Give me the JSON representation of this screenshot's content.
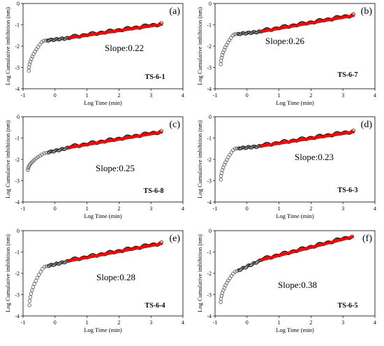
{
  "chart_data": [
    {
      "type": "scatter",
      "panel_label": "(a)",
      "sample": "TS-6-1",
      "slope_label": "Slope:0.22",
      "xlabel": "Log Time (min)",
      "ylabel": "Log Cumulative imbibition (nm)",
      "xlim": [
        -1,
        4
      ],
      "ylim": [
        -4,
        0
      ],
      "xticks": [
        "-1",
        "0",
        "1",
        "2",
        "3",
        "4"
      ],
      "yticks": [
        "0",
        "-1",
        "-2",
        "-3",
        "-4"
      ],
      "curve": {
        "onset": -0.82,
        "y0": -3.15,
        "knee_x": -0.38,
        "knee_y": -1.75,
        "fit_start": 0.45,
        "y_at_fit_start": -1.62,
        "slope": 0.22,
        "end_x": 3.35
      },
      "series_colors": {
        "open_markers": "#555555",
        "dense_markers": "#111111",
        "fit": "#ff0000"
      }
    },
    {
      "type": "scatter",
      "panel_label": "(b)",
      "sample": "TS-6-7",
      "slope_label": "Slope:0.26",
      "xlabel": "Log Time (min)",
      "ylabel": "Log Cumulative imbibition (nm)",
      "xlim": [
        -1,
        4
      ],
      "ylim": [
        -4,
        0
      ],
      "xticks": [
        "-1",
        "0",
        "1",
        "2",
        "3",
        "4"
      ],
      "yticks": [
        "0",
        "-1",
        "-2",
        "-3",
        "-4"
      ],
      "curve": {
        "onset": -0.82,
        "y0": -2.85,
        "knee_x": -0.42,
        "knee_y": -1.45,
        "fit_start": 0.45,
        "y_at_fit_start": -1.32,
        "slope": 0.26,
        "end_x": 3.35
      },
      "series_colors": {
        "open_markers": "#555555",
        "dense_markers": "#111111",
        "fit": "#ff0000"
      }
    },
    {
      "type": "scatter",
      "panel_label": "(c)",
      "sample": "TS-6-8",
      "slope_label": "Slope:0.25",
      "xlabel": "Log Time (min)",
      "ylabel": "Log Cumulative imbibition (nm)",
      "xlim": [
        -1,
        4
      ],
      "ylim": [
        -4,
        0
      ],
      "xticks": [
        "-1",
        "0",
        "1",
        "2",
        "3",
        "4"
      ],
      "yticks": [
        "0",
        "-1",
        "-2",
        "-3",
        "-4"
      ],
      "curve": {
        "onset": -0.85,
        "y0": -2.5,
        "knee_x": -0.35,
        "knee_y": -1.72,
        "fit_start": 0.45,
        "y_at_fit_start": -1.45,
        "slope": 0.25,
        "end_x": 3.35
      },
      "series_colors": {
        "open_markers": "#555555",
        "dense_markers": "#111111",
        "fit": "#ff0000"
      }
    },
    {
      "type": "scatter",
      "panel_label": "(d)",
      "sample": "TS-6-3",
      "slope_label": "Slope:0.23",
      "xlabel": "Log Time (min)",
      "ylabel": "Log Cumulative imbibition (nm)",
      "xlim": [
        -1,
        4
      ],
      "ylim": [
        -4,
        0
      ],
      "xticks": [
        "-1",
        "0",
        "1",
        "2",
        "3",
        "4"
      ],
      "yticks": [
        "0",
        "-1",
        "-2",
        "-3",
        "-4"
      ],
      "curve": {
        "onset": -0.82,
        "y0": -2.95,
        "knee_x": -0.4,
        "knee_y": -1.5,
        "fit_start": 0.45,
        "y_at_fit_start": -1.38,
        "slope": 0.23,
        "end_x": 3.35
      },
      "series_colors": {
        "open_markers": "#555555",
        "dense_markers": "#111111",
        "fit": "#ff0000"
      }
    },
    {
      "type": "scatter",
      "panel_label": "(e)",
      "sample": "TS-6-4",
      "slope_label": "Slope:0.28",
      "xlabel": "Log Time (min)",
      "ylabel": "Log Cumulative imbibition (nm)",
      "xlim": [
        -1,
        4
      ],
      "ylim": [
        -4,
        0
      ],
      "xticks": [
        "-1",
        "0",
        "1",
        "2",
        "3",
        "4"
      ],
      "yticks": [
        "0",
        "-1",
        "-2",
        "-3",
        "-4"
      ],
      "curve": {
        "onset": -0.8,
        "y0": -3.5,
        "knee_x": -0.35,
        "knee_y": -1.7,
        "fit_start": 0.45,
        "y_at_fit_start": -1.42,
        "slope": 0.28,
        "end_x": 3.35
      },
      "series_colors": {
        "open_markers": "#555555",
        "dense_markers": "#111111",
        "fit": "#ff0000"
      }
    },
    {
      "type": "scatter",
      "panel_label": "(f)",
      "sample": "TS-6-5",
      "slope_label": "Slope:0.38",
      "xlabel": "Log Time (min)",
      "ylabel": "Log Cumulative imbibition (nm)",
      "xlim": [
        -1,
        4
      ],
      "ylim": [
        -4,
        0
      ],
      "xticks": [
        "-1",
        "0",
        "1",
        "2",
        "3",
        "4"
      ],
      "yticks": [
        "0",
        "-1",
        "-2",
        "-3",
        "-4"
      ],
      "curve": {
        "onset": -0.82,
        "y0": -3.35,
        "knee_x": -0.4,
        "knee_y": -1.95,
        "fit_start": 0.45,
        "y_at_fit_start": -1.38,
        "slope": 0.38,
        "end_x": 3.3
      },
      "series_colors": {
        "open_markers": "#555555",
        "dense_markers": "#111111",
        "fit": "#ff0000"
      }
    }
  ]
}
